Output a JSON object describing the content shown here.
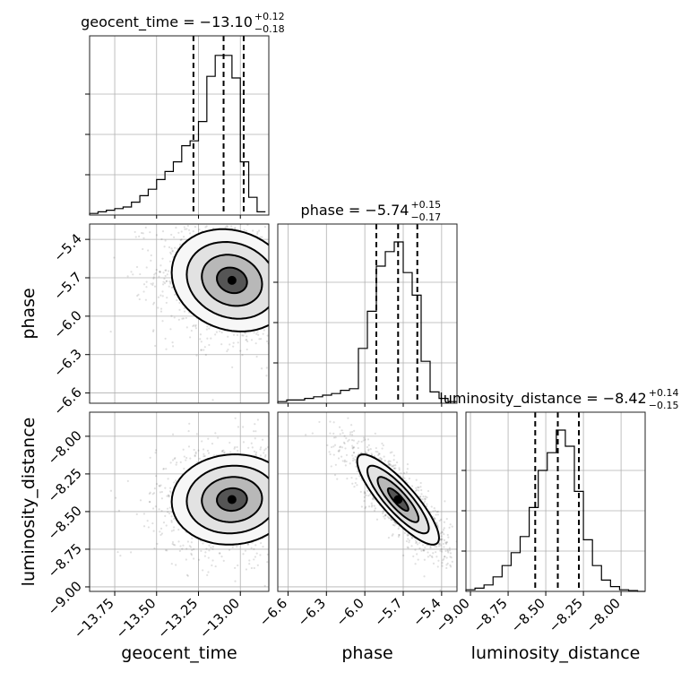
{
  "chart_data": {
    "type": "corner",
    "parameters": [
      "geocent_time",
      "phase",
      "luminosity_distance"
    ],
    "axis_labels": [
      "geocent_time",
      "phase",
      "luminosity_distance"
    ],
    "titles": [
      {
        "label": "geocent_time",
        "median": "−13.10",
        "plus": "+0.12",
        "minus": "−0.18"
      },
      {
        "label": "phase",
        "median": "−5.74",
        "plus": "+0.15",
        "minus": "−0.17"
      },
      {
        "label": "luminosity_distance",
        "median": "−8.42",
        "plus": "+0.14",
        "minus": "−0.15"
      }
    ],
    "ranges": [
      [
        -13.9,
        -12.83
      ],
      [
        -6.68,
        -5.28
      ],
      [
        -9.03,
        -7.84
      ]
    ],
    "ticks": [
      {
        "values": [
          -13.75,
          -13.5,
          -13.25,
          -13.0
        ],
        "labels": [
          "−13.75",
          "−13.50",
          "−13.25",
          "−13.00"
        ]
      },
      {
        "values": [
          -6.6,
          -6.3,
          -6.0,
          -5.7,
          -5.4
        ],
        "labels": [
          "−6.6",
          "−6.3",
          "−6.0",
          "−5.7",
          "−5.4"
        ]
      },
      {
        "values": [
          -9.0,
          -8.75,
          -8.5,
          -8.25,
          -8.0
        ],
        "labels": [
          "−9.00",
          "−8.75",
          "−8.50",
          "−8.25",
          "−8.00"
        ]
      }
    ],
    "quantiles": [
      [
        -13.28,
        -13.1,
        -12.98
      ],
      [
        -5.91,
        -5.74,
        -5.59
      ],
      [
        -8.57,
        -8.42,
        -8.28
      ]
    ],
    "histograms": [
      {
        "bins": [
          -13.9,
          -13.85,
          -13.8,
          -13.75,
          -13.7,
          -13.65,
          -13.6,
          -13.55,
          -13.5,
          -13.45,
          -13.4,
          -13.35,
          -13.3,
          -13.25,
          -13.2,
          -13.15,
          -13.1,
          -13.05,
          -13.0,
          -12.95,
          -12.9,
          -12.85
        ],
        "counts": [
          0.01,
          0.02,
          0.03,
          0.04,
          0.05,
          0.08,
          0.12,
          0.16,
          0.22,
          0.27,
          0.33,
          0.43,
          0.46,
          0.58,
          0.86,
          0.99,
          0.99,
          0.85,
          0.33,
          0.11,
          0.02
        ]
      },
      {
        "bins": [
          -6.68,
          -6.61,
          -6.54,
          -6.47,
          -6.4,
          -6.33,
          -6.26,
          -6.19,
          -6.12,
          -6.05,
          -5.98,
          -5.91,
          -5.84,
          -5.77,
          -5.7,
          -5.63,
          -5.56,
          -5.49,
          -5.42,
          -5.35,
          -5.28
        ],
        "counts": [
          0.01,
          0.02,
          0.02,
          0.03,
          0.04,
          0.05,
          0.06,
          0.08,
          0.09,
          0.34,
          0.57,
          0.85,
          0.94,
          1.0,
          0.81,
          0.67,
          0.26,
          0.07,
          0.03,
          0.01
        ]
      },
      {
        "bins": [
          -9.03,
          -8.97,
          -8.91,
          -8.85,
          -8.79,
          -8.73,
          -8.67,
          -8.61,
          -8.55,
          -8.49,
          -8.43,
          -8.37,
          -8.31,
          -8.25,
          -8.19,
          -8.13,
          -8.07,
          -8.01,
          -7.95,
          -7.89,
          -7.84
        ],
        "counts": [
          0.01,
          0.02,
          0.04,
          0.09,
          0.16,
          0.24,
          0.34,
          0.52,
          0.75,
          0.86,
          1.0,
          0.9,
          0.62,
          0.32,
          0.16,
          0.07,
          0.03,
          0.01,
          0.005,
          0.0
        ]
      }
    ],
    "joint": [
      {
        "x": 1,
        "y": 0,
        "center": [
          -13.05,
          -5.72
        ],
        "sd": [
          0.18,
          0.2
        ],
        "rho": -0.15,
        "contour_levels_sigma": [
          0.5,
          1.0,
          1.5,
          2.0
        ]
      },
      {
        "x": 2,
        "y": 0,
        "center": [
          -13.05,
          -8.42
        ],
        "sd": [
          0.18,
          0.15
        ],
        "rho": 0.05,
        "contour_levels_sigma": [
          0.5,
          1.0,
          1.5,
          2.0
        ]
      },
      {
        "x": 2,
        "y": 1,
        "center": [
          -5.74,
          -8.42
        ],
        "sd": [
          0.16,
          0.15
        ],
        "rho": -0.85,
        "contour_levels_sigma": [
          0.5,
          1.0,
          1.5,
          2.0
        ]
      }
    ],
    "grid": true
  }
}
